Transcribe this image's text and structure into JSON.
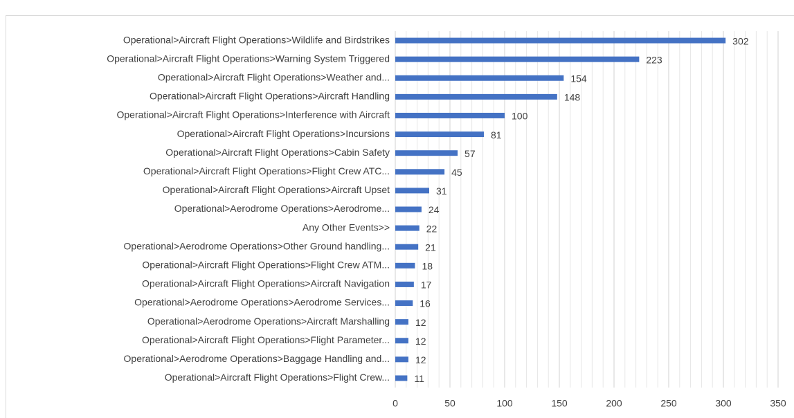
{
  "chart_data": {
    "type": "bar",
    "orientation": "horizontal",
    "color": "#4472c4",
    "categories": [
      "Operational>Aircraft Flight Operations>Wildlife and Birdstrikes",
      "Operational>Aircraft Flight Operations>Warning System Triggered",
      "Operational>Aircraft Flight Operations>Weather and...",
      "Operational>Aircraft Flight Operations>Aircraft Handling",
      "Operational>Aircraft Flight Operations>Interference with Aircraft",
      "Operational>Aircraft Flight Operations>Incursions",
      "Operational>Aircraft Flight Operations>Cabin Safety",
      "Operational>Aircraft Flight Operations>Flight Crew ATC...",
      "Operational>Aircraft Flight Operations>Aircraft Upset",
      "Operational>Aerodrome Operations>Aerodrome...",
      "Any Other Events>>",
      "Operational>Aerodrome Operations>Other Ground handling...",
      "Operational>Aircraft Flight Operations>Flight Crew ATM...",
      "Operational>Aircraft Flight Operations>Aircraft Navigation",
      "Operational>Aerodrome Operations>Aerodrome Services...",
      "Operational>Aerodrome Operations>Aircraft Marshalling",
      "Operational>Aircraft Flight Operations>Flight Parameter...",
      "Operational>Aerodrome Operations>Baggage Handling and...",
      "Operational>Aircraft Flight Operations>Flight Crew..."
    ],
    "values": [
      302,
      223,
      154,
      148,
      100,
      81,
      57,
      45,
      31,
      24,
      22,
      21,
      18,
      17,
      16,
      12,
      12,
      12,
      11
    ],
    "xlim": [
      0,
      350
    ],
    "xticks": [
      0,
      50,
      100,
      150,
      200,
      250,
      300,
      350
    ],
    "xminorticks": [
      10,
      20,
      30,
      40,
      60,
      70,
      80,
      90,
      110,
      120,
      130,
      140,
      160,
      170,
      180,
      190,
      210,
      220,
      230,
      240,
      260,
      270,
      280,
      290,
      310,
      320,
      330,
      340
    ],
    "grid": true
  }
}
